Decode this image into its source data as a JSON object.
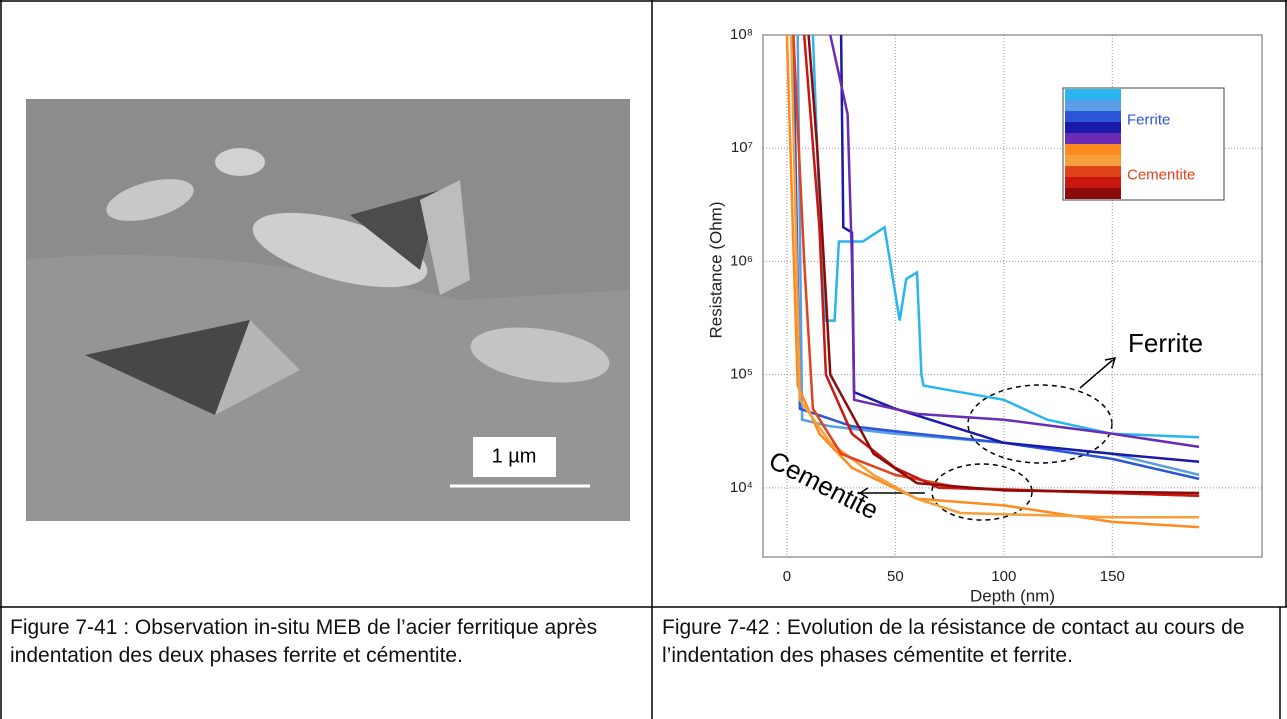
{
  "image": {
    "scale_bar": "1 µm"
  },
  "chart_data": {
    "type": "line",
    "xlabel": "Depth (nm)",
    "ylabel": "Resistance (Ohm)",
    "xlim": [
      -11,
      219
    ],
    "xticks": [
      0,
      50,
      100,
      150
    ],
    "ylim": [
      2450,
      100000000
    ],
    "log_y": true,
    "grid": true,
    "yticks": [
      {
        "value": 10000,
        "label": "10⁴"
      },
      {
        "value": 100000,
        "label": "10⁵"
      },
      {
        "value": 1000000,
        "label": "10⁶"
      },
      {
        "value": 10000000,
        "label": "10⁷"
      },
      {
        "value": 100000000,
        "label": "10⁸"
      }
    ],
    "annotations": [
      "Ferrite",
      "Cementite"
    ],
    "series": [
      {
        "name": "Ferrite",
        "color": "#29b6f0",
        "x": [
          12,
          15,
          18,
          22,
          24,
          35,
          45,
          52,
          55,
          60,
          62,
          63,
          80,
          100,
          120,
          150,
          190
        ],
        "values": [
          100000000,
          3000000,
          300000,
          300000,
          1500000,
          1500000,
          2000000,
          300000,
          700000,
          800000,
          100000,
          80000,
          70000,
          60000,
          40000,
          30000,
          28000
        ]
      },
      {
        "name": "Ferrite",
        "color": "#5a9fe6",
        "x": [
          5,
          7,
          20,
          50,
          100,
          150,
          190
        ],
        "values": [
          100000000,
          40000,
          35000,
          30000,
          25000,
          20000,
          13000
        ]
      },
      {
        "name": "Ferrite",
        "color": "#2c55d8",
        "x": [
          3,
          6,
          30,
          60,
          100,
          150,
          190
        ],
        "values": [
          100000000,
          50000,
          35000,
          30000,
          25000,
          18000,
          12000
        ]
      },
      {
        "name": "Ferrite",
        "color": "#1a1aa8",
        "x": [
          25,
          26,
          30,
          31,
          50,
          100,
          150,
          190
        ],
        "values": [
          100000000,
          2000000,
          1800000,
          70000,
          50000,
          25000,
          20000,
          17000
        ]
      },
      {
        "name": "Ferrite",
        "color": "#6a2bb5",
        "x": [
          20,
          28,
          30,
          31,
          60,
          100,
          150,
          190
        ],
        "values": [
          100000000,
          20000000,
          1000000,
          60000,
          45000,
          40000,
          30000,
          23000
        ]
      },
      {
        "name": "Cementite",
        "color": "#ff8a1f",
        "x": [
          0,
          5,
          15,
          30,
          60,
          100,
          150,
          190
        ],
        "values": [
          100000000,
          80000,
          30000,
          15000,
          8000,
          7000,
          5000,
          4500
        ]
      },
      {
        "name": "Cementite",
        "color": "#f5a03c",
        "x": [
          2,
          6,
          20,
          40,
          60,
          80,
          150,
          190
        ],
        "values": [
          100000000,
          60000,
          25000,
          13000,
          8000,
          6000,
          5500,
          5500
        ]
      },
      {
        "name": "Cementite",
        "color": "#e0431a",
        "x": [
          3,
          8,
          12,
          25,
          50,
          80,
          150,
          190
        ],
        "values": [
          100000000,
          1000000,
          50000,
          20000,
          13000,
          10000,
          9000,
          8500
        ]
      },
      {
        "name": "Cementite",
        "color": "#c8180f",
        "x": [
          8,
          15,
          18,
          30,
          50,
          70,
          150,
          190
        ],
        "values": [
          100000000,
          2000000,
          100000,
          30000,
          15000,
          10000,
          9000,
          8500
        ]
      },
      {
        "name": "Cementite",
        "color": "#8b0a0a",
        "x": [
          10,
          14,
          18,
          20,
          40,
          60,
          100,
          190
        ],
        "values": [
          100000000,
          10000000,
          500000,
          100000,
          20000,
          11000,
          9500,
          9000
        ]
      }
    ]
  },
  "captions": [
    "Figure 7-41 : Observation in-situ MEB de l’acier ferritique après indentation des deux phases ferrite et cémentite.",
    "Figure 7-42 : Evolution de la résistance de contact au cours de l’indentation des phases cémentite et ferrite."
  ]
}
